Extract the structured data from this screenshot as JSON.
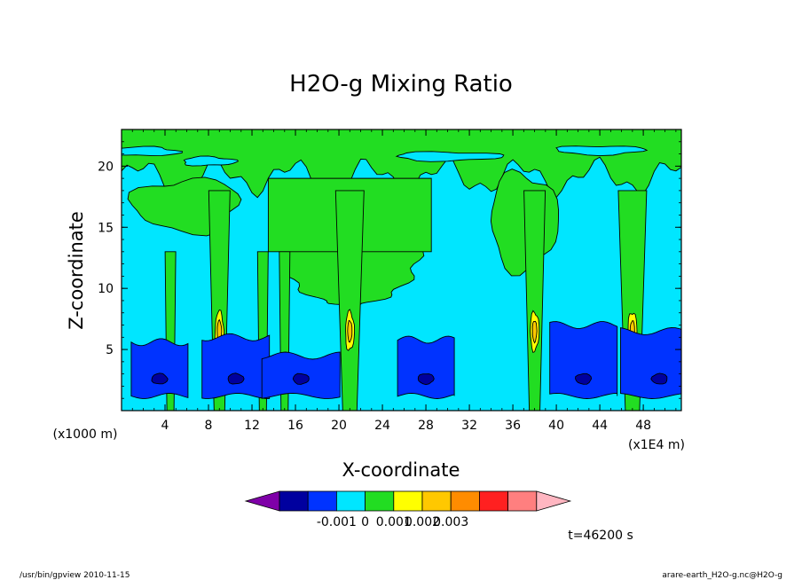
{
  "chart_data": {
    "type": "heatmap",
    "title": "H2O-g Mixing Ratio",
    "xlabel": "X-coordinate",
    "ylabel": "Z-coordinate",
    "x_unit_left": "(x1000 m)",
    "x_unit_right": "(x1E4 m)",
    "xlim": [
      0,
      51.5
    ],
    "ylim": [
      0,
      23
    ],
    "x_ticks": [
      4,
      8,
      12,
      16,
      20,
      24,
      28,
      32,
      36,
      40,
      44,
      48
    ],
    "y_ticks": [
      5,
      10,
      15,
      20
    ],
    "levels": [
      -0.001,
      0,
      0.001,
      0.002,
      0.003
    ],
    "colorbar_labels": [
      "-0.001",
      "0",
      "0.001",
      "0.002",
      "0.003"
    ],
    "colorbar_colors": [
      "#7f00a8",
      "#00009f",
      "#0033ff",
      "#00e6ff",
      "#22dd22",
      "#ffff00",
      "#ffc800",
      "#ff8c00",
      "#ff2020",
      "#ff7f7f",
      "#ffb6c1"
    ],
    "time_label": "t=46200 s",
    "colors": {
      "background_band": "#00e6ff",
      "moist_region": "#22dd22",
      "dry_region": "#0033ff",
      "very_dry": "#00009f",
      "plume_core": "#ffff00",
      "plume_peak": "#ffc800"
    },
    "updraft_x": [
      9,
      21,
      38,
      47
    ],
    "dry_pockets": [
      {
        "x_center": 3.5,
        "z_top": 5.6
      },
      {
        "x_center": 10.5,
        "z_top": 6
      },
      {
        "x_center": 16.5,
        "z_top": 4.5
      },
      {
        "x_center": 28,
        "z_top": 5.8
      },
      {
        "x_center": 42.5,
        "z_top": 7
      },
      {
        "x_center": 49.5,
        "z_top": 6.5
      }
    ]
  },
  "footer": {
    "left": "/usr/bin/gpview   2010-11-15",
    "right": "arare-earth_H2O-g.nc@H2O-g"
  }
}
